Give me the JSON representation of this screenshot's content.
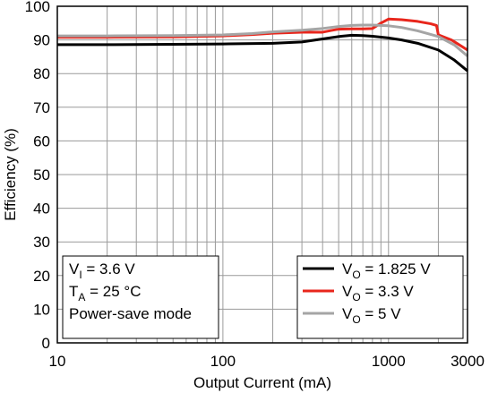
{
  "chart_data": {
    "type": "line",
    "xscale": "log",
    "xlim": [
      10,
      3000
    ],
    "ylim": [
      0,
      100
    ],
    "xlabel": "Output Current (mA)",
    "ylabel": "Efficiency (%)",
    "x_tick_labels": [
      "10",
      "100",
      "1000",
      "3000"
    ],
    "x_ticks": [
      10,
      100,
      1000,
      3000
    ],
    "y_ticks": [
      0,
      10,
      20,
      30,
      40,
      50,
      60,
      70,
      80,
      90,
      100
    ],
    "grid": true,
    "legend_position": "bottom-right",
    "conditions": [
      {
        "main": "V",
        "sub": "I",
        "rest": " = 3.6 V"
      },
      {
        "main": "T",
        "sub": "A",
        "rest": " = 25 °C"
      },
      {
        "main": "Power-save mode",
        "sub": "",
        "rest": ""
      }
    ],
    "series": [
      {
        "name": "1.825 V",
        "legend": {
          "main": "V",
          "sub": "O",
          "rest": " = 1.825 V"
        },
        "color": "#000000",
        "points": [
          [
            10,
            88.6
          ],
          [
            20,
            88.6
          ],
          [
            50,
            88.7
          ],
          [
            100,
            88.8
          ],
          [
            200,
            89.0
          ],
          [
            300,
            89.4
          ],
          [
            400,
            90.3
          ],
          [
            500,
            91.0
          ],
          [
            600,
            91.4
          ],
          [
            700,
            91.3
          ],
          [
            800,
            91.1
          ],
          [
            1000,
            90.6
          ],
          [
            1200,
            90.0
          ],
          [
            1500,
            89.0
          ],
          [
            2000,
            87.0
          ],
          [
            2500,
            84.0
          ],
          [
            3000,
            80.8
          ]
        ]
      },
      {
        "name": "3.3 V",
        "legend": {
          "main": "V",
          "sub": "O",
          "rest": " = 3.3 V"
        },
        "color": "#e8261c",
        "points": [
          [
            10,
            90.8
          ],
          [
            20,
            90.8
          ],
          [
            50,
            90.9
          ],
          [
            100,
            91.2
          ],
          [
            150,
            91.6
          ],
          [
            200,
            92.0
          ],
          [
            300,
            92.3
          ],
          [
            400,
            92.3
          ],
          [
            450,
            92.8
          ],
          [
            500,
            93.2
          ],
          [
            600,
            93.3
          ],
          [
            700,
            93.3
          ],
          [
            800,
            93.4
          ],
          [
            900,
            95.0
          ],
          [
            1000,
            96.2
          ],
          [
            1200,
            96.0
          ],
          [
            1500,
            95.5
          ],
          [
            1800,
            94.8
          ],
          [
            1950,
            94.3
          ],
          [
            2000,
            91.5
          ],
          [
            2400,
            90.0
          ],
          [
            3000,
            87.0
          ]
        ]
      },
      {
        "name": "5 V",
        "legend": {
          "main": "V",
          "sub": "O",
          "rest": " = 5 V"
        },
        "color": "#a5a5a5",
        "points": [
          [
            10,
            91.2
          ],
          [
            20,
            91.2
          ],
          [
            50,
            91.3
          ],
          [
            100,
            91.5
          ],
          [
            150,
            91.9
          ],
          [
            200,
            92.4
          ],
          [
            300,
            92.9
          ],
          [
            400,
            93.4
          ],
          [
            500,
            94.0
          ],
          [
            600,
            94.3
          ],
          [
            700,
            94.4
          ],
          [
            800,
            94.4
          ],
          [
            1000,
            94.2
          ],
          [
            1200,
            93.7
          ],
          [
            1500,
            92.7
          ],
          [
            2000,
            91.0
          ],
          [
            2500,
            88.5
          ],
          [
            3000,
            85.2
          ]
        ]
      }
    ]
  }
}
